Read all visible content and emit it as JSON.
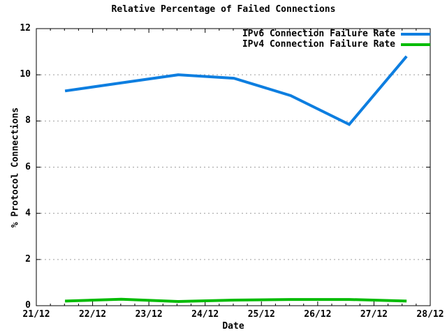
{
  "chart_data": {
    "type": "line",
    "title": "Relative Percentage of Failed Connections",
    "xlabel": "Date",
    "ylabel": "% Protocol Connections",
    "xlim": [
      21,
      28
    ],
    "ylim": [
      0,
      12
    ],
    "x_major_ticks": [
      21,
      22,
      23,
      24,
      25,
      26,
      27,
      28
    ],
    "x_tick_labels": [
      "21/12",
      "22/12",
      "23/12",
      "24/12",
      "25/12",
      "26/12",
      "27/12",
      "28/12"
    ],
    "x_minor_step": 0.25,
    "y_major_ticks": [
      0,
      2,
      4,
      6,
      8,
      10,
      12
    ],
    "y_tick_labels": [
      "0",
      "2",
      "4",
      "6",
      "8",
      "10",
      "12"
    ],
    "grid": "horizontal-dashed",
    "legend_position": "top-right-inside",
    "colors": {
      "background": "#ffffff",
      "axis": "#000000",
      "grid": "#9e9e9e",
      "ipv6_blue": "#0d7ee0",
      "ipv4_green": "#00bb00"
    },
    "series": [
      {
        "name": "IPv6 Connection Failure Rate",
        "color": "#0d7ee0",
        "x": [
          21.51,
          22.51,
          23.52,
          24.51,
          25.52,
          26.56,
          27.58
        ],
        "values": [
          9.3,
          9.65,
          10.0,
          9.85,
          9.1,
          7.85,
          10.8
        ]
      },
      {
        "name": "IPv4 Connection Failure Rate",
        "color": "#00bb00",
        "x": [
          21.51,
          22.51,
          23.52,
          24.51,
          25.52,
          26.56,
          27.58
        ],
        "values": [
          0.2,
          0.28,
          0.18,
          0.24,
          0.27,
          0.27,
          0.2
        ]
      }
    ]
  }
}
